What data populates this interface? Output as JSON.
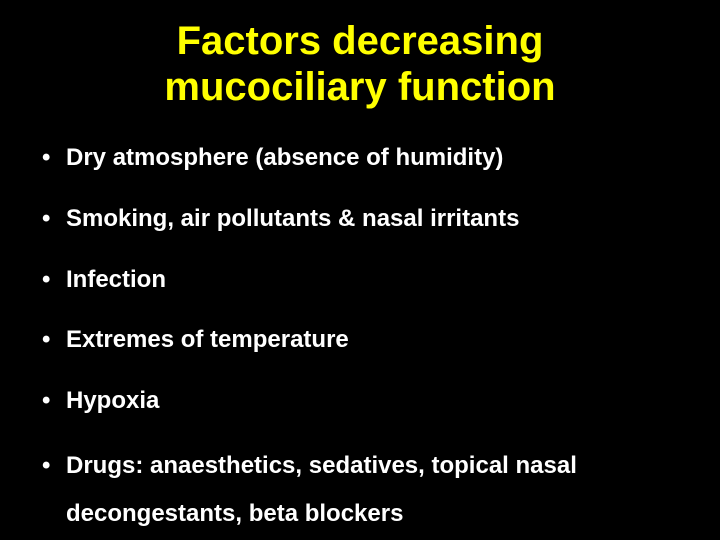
{
  "slide": {
    "title": "Factors decreasing mucociliary function",
    "title_color": "#ffff00",
    "title_fontsize": 40,
    "background_color": "#000000",
    "text_color": "#ffffff",
    "body_fontsize": 24,
    "bullets": [
      "Dry atmosphere (absence of humidity)",
      "Smoking, air pollutants & nasal irritants",
      "Infection",
      "Extremes of temperature",
      "Hypoxia",
      "Drugs: anaesthetics, sedatives, topical nasal decongestants, beta blockers"
    ]
  }
}
